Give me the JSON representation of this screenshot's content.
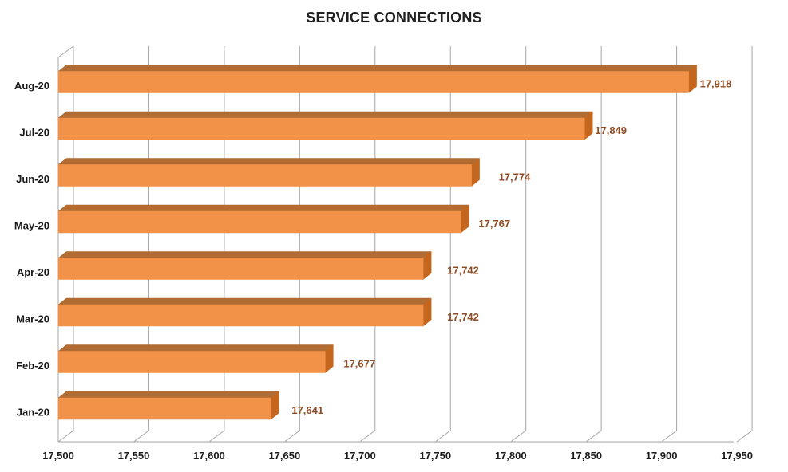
{
  "title": "SERVICE CONNECTIONS",
  "chart_data": {
    "type": "bar",
    "orientation": "horizontal",
    "style": "3d",
    "title": "SERVICE CONNECTIONS",
    "categories": [
      "Aug-20",
      "Jul-20",
      "Jun-20",
      "May-20",
      "Apr-20",
      "Mar-20",
      "Feb-20",
      "Jan-20"
    ],
    "values": [
      17918,
      17849,
      17774,
      17767,
      17742,
      17742,
      17677,
      17641
    ],
    "data_labels": [
      "17,918",
      "17,849",
      "17,774",
      "17,767",
      "17,742",
      "17,742",
      "17,677",
      "17,641"
    ],
    "x_ticks": [
      17500,
      17550,
      17600,
      17650,
      17700,
      17750,
      17800,
      17850,
      17900,
      17950
    ],
    "x_tick_labels": [
      "17,500",
      "17,550",
      "17,600",
      "17,650",
      "17,700",
      "17,750",
      "17,800",
      "17,850",
      "17,900",
      "17,950"
    ],
    "xlim": [
      17500,
      17950
    ],
    "grid": true,
    "legend": false,
    "colors": {
      "bar_face": "#F29249",
      "bar_top": "#B06C33",
      "bar_side": "#C5661E",
      "data_label": "#8F4D26",
      "gridline": "#A6A6A6",
      "axis_text": "#1A1A1A",
      "background": "#FFFFFF"
    }
  }
}
